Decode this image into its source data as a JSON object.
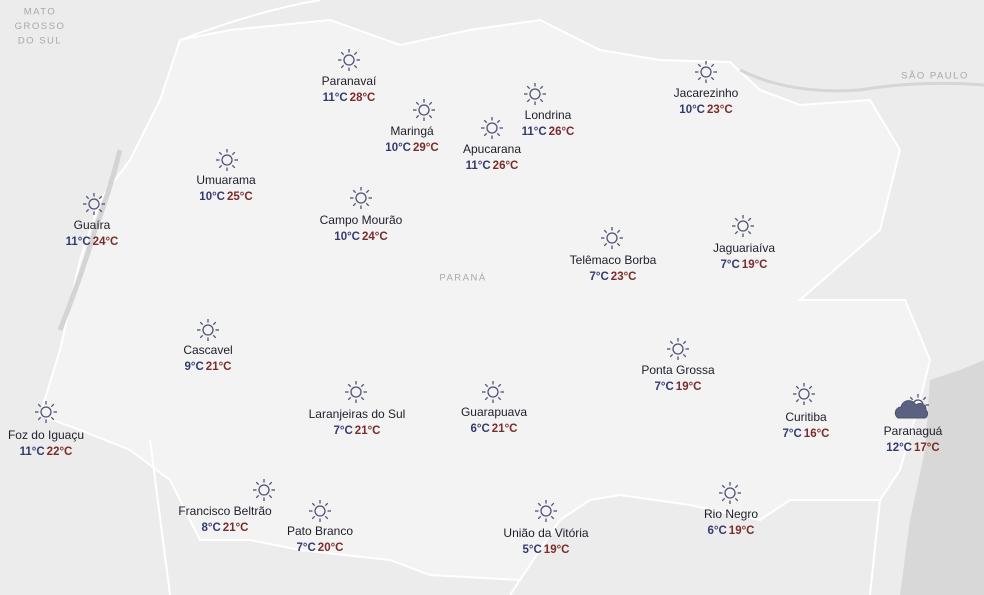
{
  "regions": [
    {
      "lines": [
        "MATO",
        "GROSSO",
        "DO SUL"
      ]
    },
    {
      "lines": [
        "SÃO PAULO"
      ]
    },
    {
      "lines": [
        "PARANÁ"
      ]
    }
  ],
  "cities": [
    {
      "name": "Paranavaí",
      "min": "11°C",
      "max": "28°C",
      "icon": "sun"
    },
    {
      "name": "Maringá",
      "min": "10°C",
      "max": "29°C",
      "icon": "sun"
    },
    {
      "name": "Londrina",
      "min": "11°C",
      "max": "26°C",
      "icon": "sun"
    },
    {
      "name": "Apucarana",
      "min": "11°C",
      "max": "26°C",
      "icon": "sun"
    },
    {
      "name": "Jacarezinho",
      "min": "10°C",
      "max": "23°C",
      "icon": "sun"
    },
    {
      "name": "Umuarama",
      "min": "10°C",
      "max": "25°C",
      "icon": "sun"
    },
    {
      "name": "Guaíra",
      "min": "11°C",
      "max": "24°C",
      "icon": "sun"
    },
    {
      "name": "Campo Mourão",
      "min": "10°C",
      "max": "24°C",
      "icon": "sun"
    },
    {
      "name": "Telêmaco Borba",
      "min": "7°C",
      "max": "23°C",
      "icon": "sun"
    },
    {
      "name": "Jaguariaíva",
      "min": "7°C",
      "max": "19°C",
      "icon": "sun"
    },
    {
      "name": "Cascavel",
      "min": "9°C",
      "max": "21°C",
      "icon": "sun"
    },
    {
      "name": "Ponta Grossa",
      "min": "7°C",
      "max": "19°C",
      "icon": "sun"
    },
    {
      "name": "Laranjeiras do Sul",
      "min": "7°C",
      "max": "21°C",
      "icon": "sun"
    },
    {
      "name": "Guarapuava",
      "min": "6°C",
      "max": "21°C",
      "icon": "sun"
    },
    {
      "name": "Curitiba",
      "min": "7°C",
      "max": "16°C",
      "icon": "sun"
    },
    {
      "name": "Paranaguá",
      "min": "12°C",
      "max": "17°C",
      "icon": "cloudy"
    },
    {
      "name": "Foz do Iguaçu",
      "min": "11°C",
      "max": "22°C",
      "icon": "sun"
    },
    {
      "name": "Francisco Beltrão",
      "min": "8°C",
      "max": "21°C",
      "icon": "sun"
    },
    {
      "name": "Pato Branco",
      "min": "7°C",
      "max": "20°C",
      "icon": "sun"
    },
    {
      "name": "União da Vitória",
      "min": "5°C",
      "max": "19°C",
      "icon": "sun"
    },
    {
      "name": "Rio Negro",
      "min": "6°C",
      "max": "19°C",
      "icon": "sun"
    }
  ]
}
